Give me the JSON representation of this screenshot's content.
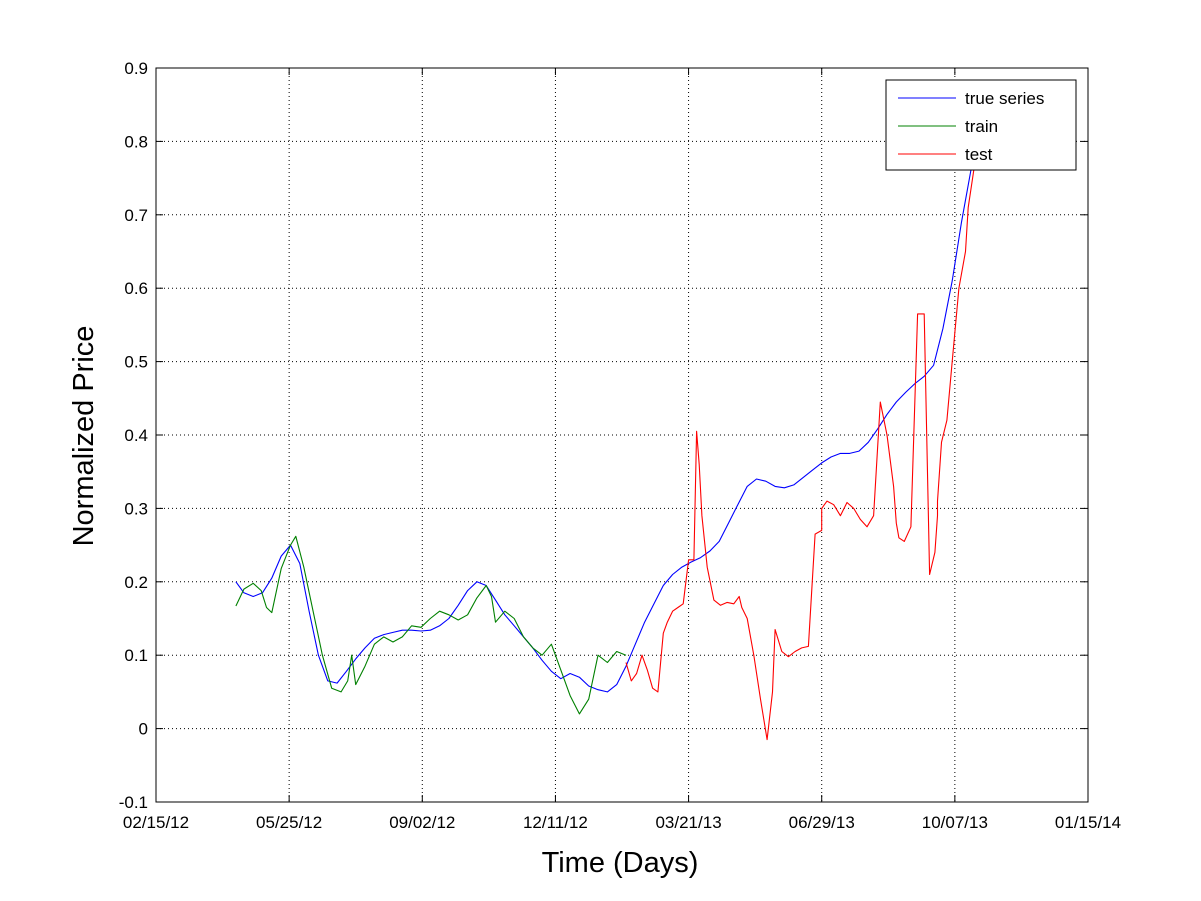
{
  "chart_data": {
    "type": "line",
    "title": "",
    "xlabel": "Time (Days)",
    "ylabel": "Normalized Price",
    "xlim": [
      "2012-02-15",
      "2014-01-15"
    ],
    "ylim": [
      -0.1,
      0.9
    ],
    "grid": true,
    "legend_position": "top-right",
    "x_ticks": [
      {
        "date": "2012-02-15",
        "label": "02/15/12"
      },
      {
        "date": "2012-05-25",
        "label": "05/25/12"
      },
      {
        "date": "2012-09-02",
        "label": "09/02/12"
      },
      {
        "date": "2012-12-11",
        "label": "12/11/12"
      },
      {
        "date": "2013-03-21",
        "label": "03/21/13"
      },
      {
        "date": "2013-06-29",
        "label": "06/29/13"
      },
      {
        "date": "2013-10-07",
        "label": "10/07/13"
      },
      {
        "date": "2014-01-15",
        "label": "01/15/14"
      }
    ],
    "y_ticks": [
      {
        "value": -0.1,
        "label": "-0.1"
      },
      {
        "value": 0,
        "label": "0"
      },
      {
        "value": 0.1,
        "label": "0.1"
      },
      {
        "value": 0.2,
        "label": "0.2"
      },
      {
        "value": 0.3,
        "label": "0.3"
      },
      {
        "value": 0.4,
        "label": "0.4"
      },
      {
        "value": 0.5,
        "label": "0.5"
      },
      {
        "value": 0.6,
        "label": "0.6"
      },
      {
        "value": 0.7,
        "label": "0.7"
      },
      {
        "value": 0.8,
        "label": "0.8"
      },
      {
        "value": 0.9,
        "label": "0.9"
      }
    ],
    "series": [
      {
        "name": "true series",
        "color": "#0000ff",
        "x": [
          "2012-04-15",
          "2012-04-21",
          "2012-04-28",
          "2012-05-05",
          "2012-05-12",
          "2012-05-19",
          "2012-05-26",
          "2012-06-02",
          "2012-06-09",
          "2012-06-16",
          "2012-06-23",
          "2012-06-30",
          "2012-07-07",
          "2012-07-14",
          "2012-07-21",
          "2012-07-28",
          "2012-08-04",
          "2012-08-11",
          "2012-08-18",
          "2012-08-25",
          "2012-09-01",
          "2012-09-08",
          "2012-09-15",
          "2012-09-22",
          "2012-09-29",
          "2012-10-06",
          "2012-10-13",
          "2012-10-20",
          "2012-10-27",
          "2012-11-03",
          "2012-11-10",
          "2012-11-17",
          "2012-11-24",
          "2012-12-01",
          "2012-12-08",
          "2012-12-15",
          "2012-12-22",
          "2012-12-29",
          "2013-01-05",
          "2013-01-12",
          "2013-01-19",
          "2013-01-26",
          "2013-02-02",
          "2013-02-09",
          "2013-02-16",
          "2013-02-23",
          "2013-03-02",
          "2013-03-09",
          "2013-03-16",
          "2013-03-23",
          "2013-03-30",
          "2013-04-06",
          "2013-04-13",
          "2013-04-20",
          "2013-04-27",
          "2013-05-04",
          "2013-05-11",
          "2013-05-18",
          "2013-05-25",
          "2013-06-01",
          "2013-06-08",
          "2013-06-15",
          "2013-06-22",
          "2013-06-29",
          "2013-07-06",
          "2013-07-13",
          "2013-07-20",
          "2013-07-27",
          "2013-08-03",
          "2013-08-10",
          "2013-08-17",
          "2013-08-24",
          "2013-08-31",
          "2013-09-07",
          "2013-09-14",
          "2013-09-21",
          "2013-09-28",
          "2013-10-05",
          "2013-10-12",
          "2013-10-19",
          "2013-10-26"
        ],
        "y": [
          0.2,
          0.185,
          0.18,
          0.185,
          0.205,
          0.235,
          0.25,
          0.225,
          0.16,
          0.1,
          0.065,
          0.062,
          0.078,
          0.095,
          0.11,
          0.123,
          0.128,
          0.131,
          0.134,
          0.134,
          0.133,
          0.134,
          0.14,
          0.15,
          0.168,
          0.188,
          0.2,
          0.195,
          0.175,
          0.155,
          0.14,
          0.125,
          0.11,
          0.093,
          0.078,
          0.068,
          0.075,
          0.07,
          0.058,
          0.053,
          0.05,
          0.06,
          0.085,
          0.115,
          0.145,
          0.17,
          0.195,
          0.21,
          0.22,
          0.227,
          0.233,
          0.242,
          0.255,
          0.28,
          0.305,
          0.33,
          0.34,
          0.337,
          0.33,
          0.328,
          0.332,
          0.342,
          0.352,
          0.362,
          0.37,
          0.375,
          0.375,
          0.378,
          0.39,
          0.408,
          0.428,
          0.445,
          0.458,
          0.47,
          0.48,
          0.495,
          0.545,
          0.61,
          0.69,
          0.76,
          0.82
        ]
      },
      {
        "name": "train",
        "color": "#008000",
        "x": [
          "2012-04-15",
          "2012-04-21",
          "2012-04-28",
          "2012-05-04",
          "2012-05-08",
          "2012-05-12",
          "2012-05-19",
          "2012-05-26",
          "2012-05-30",
          "2012-06-05",
          "2012-06-12",
          "2012-06-19",
          "2012-06-26",
          "2012-07-03",
          "2012-07-08",
          "2012-07-11",
          "2012-07-14",
          "2012-07-21",
          "2012-07-28",
          "2012-08-04",
          "2012-08-11",
          "2012-08-18",
          "2012-08-25",
          "2012-09-01",
          "2012-09-08",
          "2012-09-15",
          "2012-09-22",
          "2012-09-29",
          "2012-10-06",
          "2012-10-13",
          "2012-10-20",
          "2012-10-24",
          "2012-10-27",
          "2012-11-03",
          "2012-11-10",
          "2012-11-17",
          "2012-11-24",
          "2012-12-01",
          "2012-12-08",
          "2012-12-15",
          "2012-12-22",
          "2012-12-29",
          "2013-01-05",
          "2013-01-12",
          "2013-01-19",
          "2013-01-26",
          "2013-02-02"
        ],
        "y": [
          0.167,
          0.19,
          0.198,
          0.188,
          0.165,
          0.158,
          0.218,
          0.25,
          0.262,
          0.22,
          0.16,
          0.1,
          0.055,
          0.05,
          0.065,
          0.1,
          0.06,
          0.085,
          0.115,
          0.125,
          0.118,
          0.125,
          0.14,
          0.138,
          0.15,
          0.16,
          0.155,
          0.148,
          0.155,
          0.178,
          0.195,
          0.18,
          0.145,
          0.16,
          0.15,
          0.125,
          0.11,
          0.1,
          0.115,
          0.08,
          0.045,
          0.02,
          0.04,
          0.1,
          0.09,
          0.105,
          0.1
        ]
      },
      {
        "name": "test",
        "color": "#ff0000",
        "x": [
          "2013-02-02",
          "2013-02-06",
          "2013-02-10",
          "2013-02-14",
          "2013-02-18",
          "2013-02-22",
          "2013-02-26",
          "2013-03-02",
          "2013-03-05",
          "2013-03-09",
          "2013-03-13",
          "2013-03-17",
          "2013-03-21",
          "2013-03-25",
          "2013-03-27",
          "2013-03-29",
          "2013-03-31",
          "2013-04-04",
          "2013-04-09",
          "2013-04-14",
          "2013-04-19",
          "2013-04-24",
          "2013-04-28",
          "2013-04-30",
          "2013-05-04",
          "2013-05-09",
          "2013-05-14",
          "2013-05-19",
          "2013-05-23",
          "2013-05-25",
          "2013-05-25",
          "2013-05-30",
          "2013-06-04",
          "2013-06-09",
          "2013-06-14",
          "2013-06-19",
          "2013-06-24",
          "2013-06-29",
          "2013-06-29",
          "2013-07-03",
          "2013-07-08",
          "2013-07-13",
          "2013-07-18",
          "2013-07-23",
          "2013-07-28",
          "2013-08-02",
          "2013-08-07",
          "2013-08-12",
          "2013-08-17",
          "2013-08-22",
          "2013-08-24",
          "2013-08-26",
          "2013-08-30",
          "2013-09-04",
          "2013-09-09",
          "2013-09-14",
          "2013-09-18",
          "2013-09-22",
          "2013-09-24",
          "2013-09-24",
          "2013-09-27",
          "2013-10-01",
          "2013-10-05",
          "2013-10-10",
          "2013-10-15",
          "2013-10-17",
          "2013-10-22",
          "2013-10-27",
          "2013-11-01"
        ],
        "y": [
          0.09,
          0.065,
          0.075,
          0.1,
          0.08,
          0.055,
          0.05,
          0.13,
          0.145,
          0.16,
          0.165,
          0.17,
          0.23,
          0.23,
          0.405,
          0.36,
          0.29,
          0.22,
          0.175,
          0.168,
          0.172,
          0.17,
          0.18,
          0.165,
          0.15,
          0.1,
          0.04,
          -0.015,
          0.05,
          0.135,
          0.135,
          0.105,
          0.098,
          0.105,
          0.11,
          0.112,
          0.265,
          0.27,
          0.3,
          0.31,
          0.305,
          0.29,
          0.308,
          0.3,
          0.285,
          0.275,
          0.29,
          0.445,
          0.4,
          0.33,
          0.28,
          0.26,
          0.255,
          0.275,
          0.565,
          0.565,
          0.21,
          0.24,
          0.29,
          0.31,
          0.39,
          0.42,
          0.5,
          0.6,
          0.65,
          0.71,
          0.77,
          0.8,
          0.8
        ]
      }
    ]
  }
}
